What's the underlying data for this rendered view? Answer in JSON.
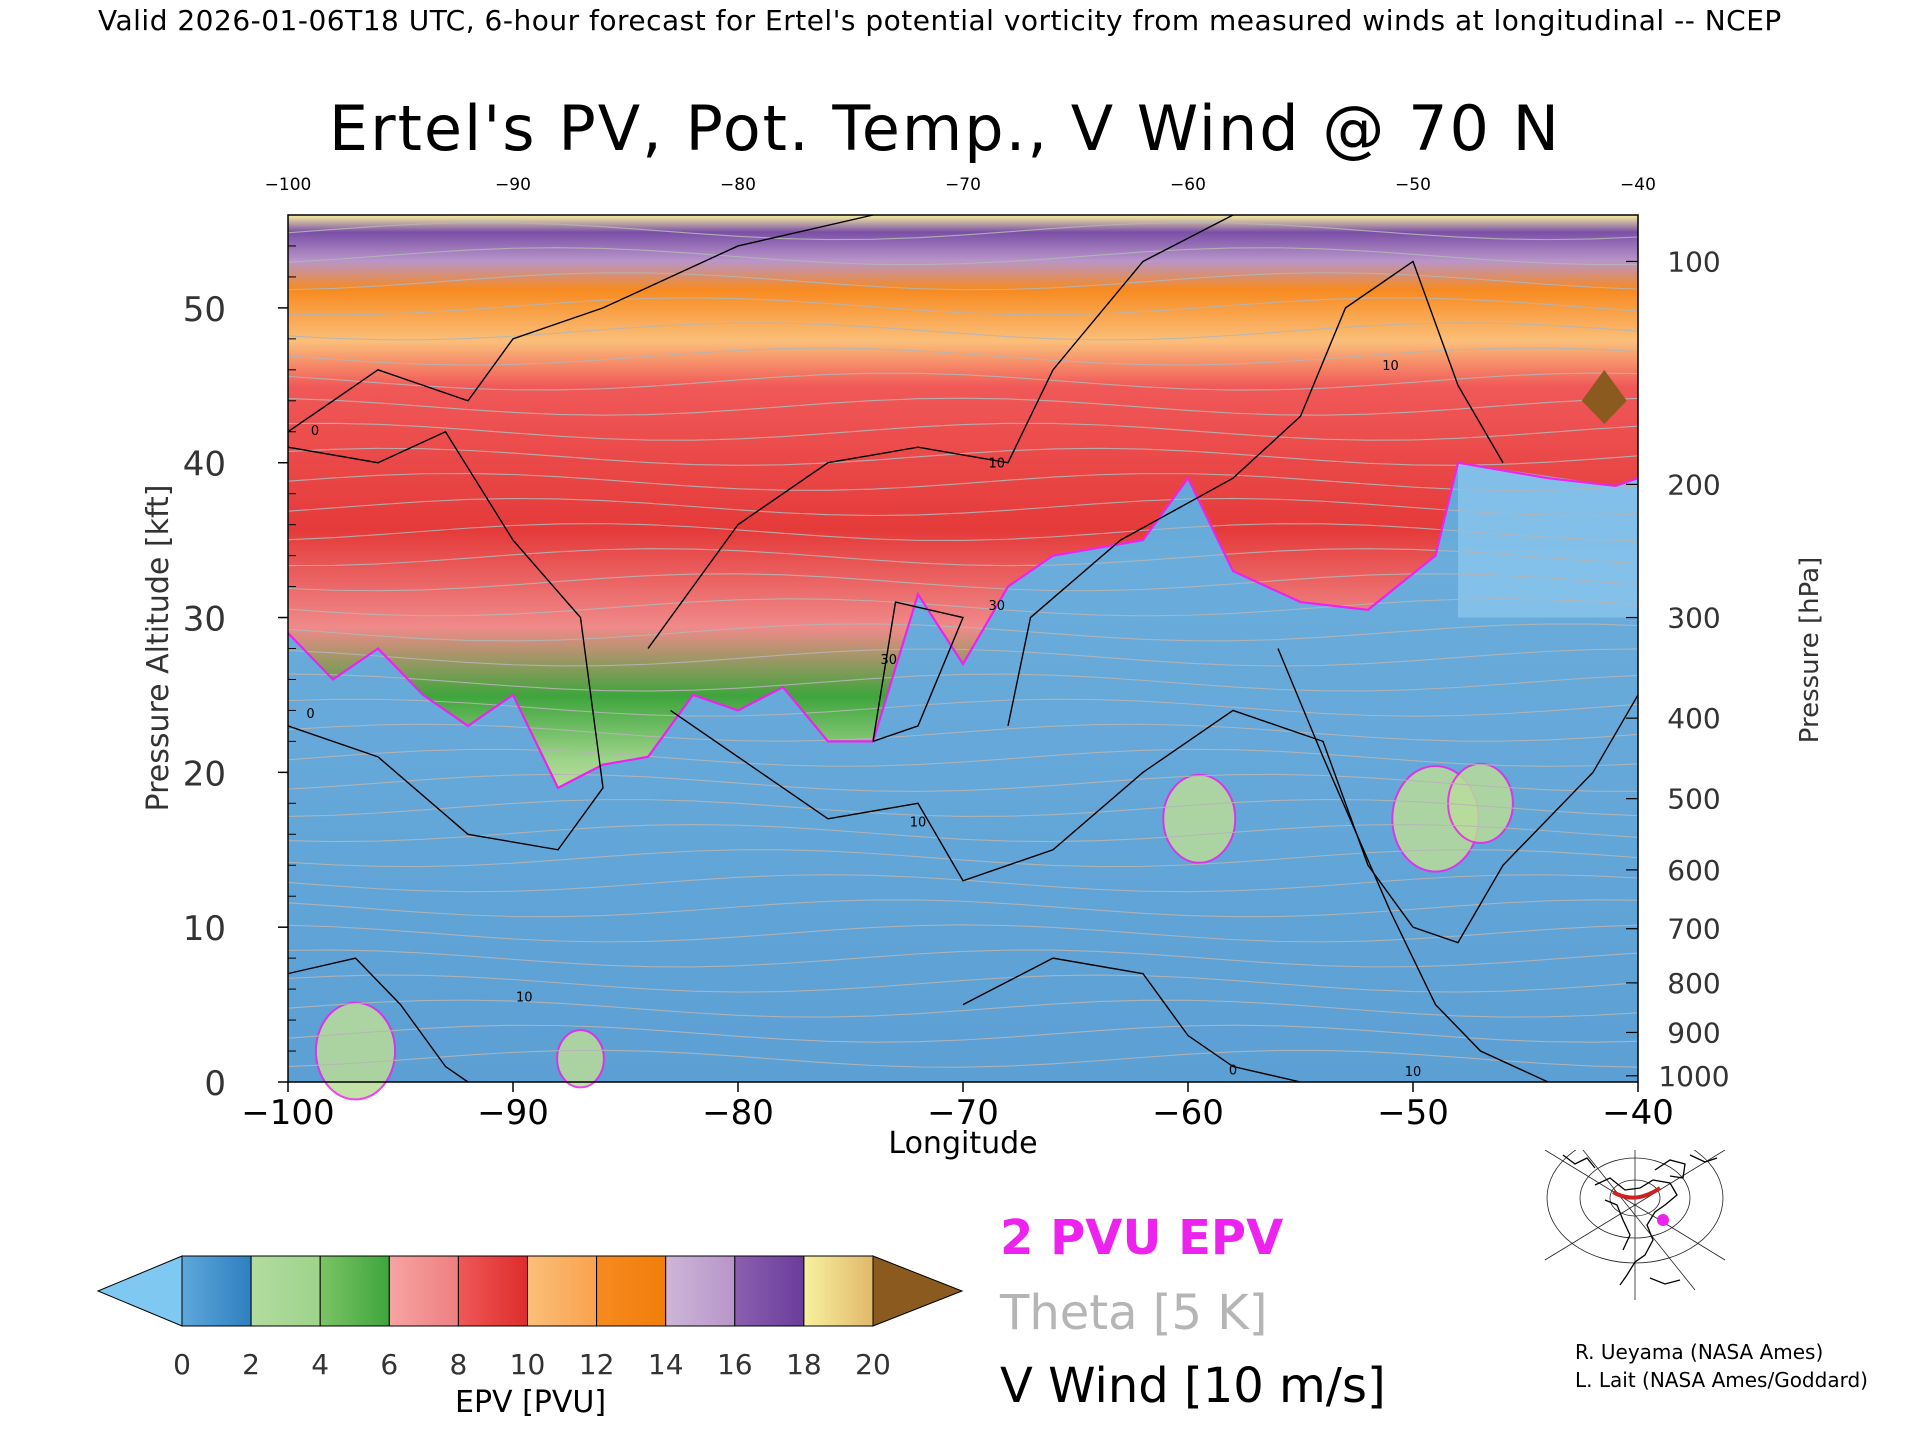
{
  "header": {
    "text": "Valid 2026-01-06T18 UTC, 6-hour forecast for Ertel's potential vorticity from measured winds at longitudinal -- NCEP"
  },
  "chart_data": {
    "type": "heatmap",
    "title": "Ertel's PV, Pot. Temp., V Wind @ 70 N",
    "xlabel": "Longitude",
    "ylabel": "Pressure Altitude [kft]",
    "ylabel_right": "Pressure [hPa]",
    "xlim": [
      -100,
      -40
    ],
    "ylim": [
      0,
      56
    ],
    "x_ticks": [
      -100,
      -90,
      -80,
      -70,
      -60,
      -50,
      -40
    ],
    "x_tick_labels": [
      "−100",
      "−90",
      "−80",
      "−70",
      "−60",
      "−50",
      "−40"
    ],
    "top_tick_labels": [
      "−100",
      "−90",
      "−80",
      "−70",
      "−60",
      "−50",
      "−40"
    ],
    "y_ticks": [
      0,
      10,
      20,
      30,
      40,
      50
    ],
    "right_axis": [
      {
        "label": "100",
        "kft": 53.0
      },
      {
        "label": "200",
        "kft": 38.6
      },
      {
        "label": "300",
        "kft": 30.0
      },
      {
        "label": "400",
        "kft": 23.5
      },
      {
        "label": "500",
        "kft": 18.3
      },
      {
        "label": "600",
        "kft": 13.7
      },
      {
        "label": "700",
        "kft": 9.9
      },
      {
        "label": "800",
        "kft": 6.4
      },
      {
        "label": "900",
        "kft": 3.2
      },
      {
        "label": "1000",
        "kft": 0.4
      }
    ],
    "tropopause_2pvu_kft": [
      {
        "x": -100,
        "y": 29.0
      },
      {
        "x": -98,
        "y": 26.0
      },
      {
        "x": -96,
        "y": 28.0
      },
      {
        "x": -94,
        "y": 25.0
      },
      {
        "x": -92,
        "y": 23.0
      },
      {
        "x": -90,
        "y": 25.0
      },
      {
        "x": -88,
        "y": 19.0
      },
      {
        "x": -86,
        "y": 20.5
      },
      {
        "x": -84,
        "y": 21.0
      },
      {
        "x": -82,
        "y": 25.0
      },
      {
        "x": -80,
        "y": 24.0
      },
      {
        "x": -78,
        "y": 25.5
      },
      {
        "x": -76,
        "y": 22.0
      },
      {
        "x": -74,
        "y": 22.0
      },
      {
        "x": -72,
        "y": 31.5
      },
      {
        "x": -70,
        "y": 27.0
      },
      {
        "x": -68,
        "y": 32.0
      },
      {
        "x": -66,
        "y": 34.0
      },
      {
        "x": -62,
        "y": 35.0
      },
      {
        "x": -60,
        "y": 39.0
      },
      {
        "x": -58,
        "y": 33.0
      },
      {
        "x": -55,
        "y": 31.0
      },
      {
        "x": -52,
        "y": 30.5
      },
      {
        "x": -49,
        "y": 34.0
      },
      {
        "x": -48,
        "y": 40.0
      },
      {
        "x": -44,
        "y": 39.0
      },
      {
        "x": -41,
        "y": 38.5
      },
      {
        "x": -40,
        "y": 39.0
      }
    ],
    "wind_contour_labels": [
      "0",
      "10",
      "30"
    ],
    "colorbar": {
      "label": "EPV [PVU]",
      "ticks": [
        "0",
        "2",
        "4",
        "6",
        "8",
        "10",
        "12",
        "14",
        "16",
        "18",
        "20"
      ],
      "under_color": "#7ec8f2",
      "over_color": "#8b5a1e",
      "segments": [
        {
          "from": "#5da8db",
          "to": "#2f7fbf"
        },
        {
          "from": "#b2dca0",
          "to": "#9ed38a"
        },
        {
          "from": "#7cc465",
          "to": "#3ea53c"
        },
        {
          "from": "#f7a3a3",
          "to": "#ee8080"
        },
        {
          "from": "#f05858",
          "to": "#de2c2c"
        },
        {
          "from": "#fbbf7a",
          "to": "#f9a24d"
        },
        {
          "from": "#f78a20",
          "to": "#f07e0a"
        },
        {
          "from": "#cdb6d8",
          "to": "#b895c9"
        },
        {
          "from": "#8b5fb0",
          "to": "#6a3d9a"
        },
        {
          "from": "#f7f1a0",
          "to": "#e2b86a"
        }
      ]
    }
  },
  "legend": {
    "pvu": "2 PVU EPV",
    "theta": "Theta [5 K]",
    "wind": "V Wind [10 m/s]"
  },
  "credits": {
    "line1": "R. Ueyama (NASA Ames)",
    "line2": "L. Lait (NASA Ames/Goddard)"
  },
  "colors": {
    "pvu_contour": "#ee22ee",
    "theta_contour": "#b5b5b5",
    "troposphere": "#5da0d6",
    "marker": "#ee22ee",
    "cross_section": "#cc2222"
  }
}
